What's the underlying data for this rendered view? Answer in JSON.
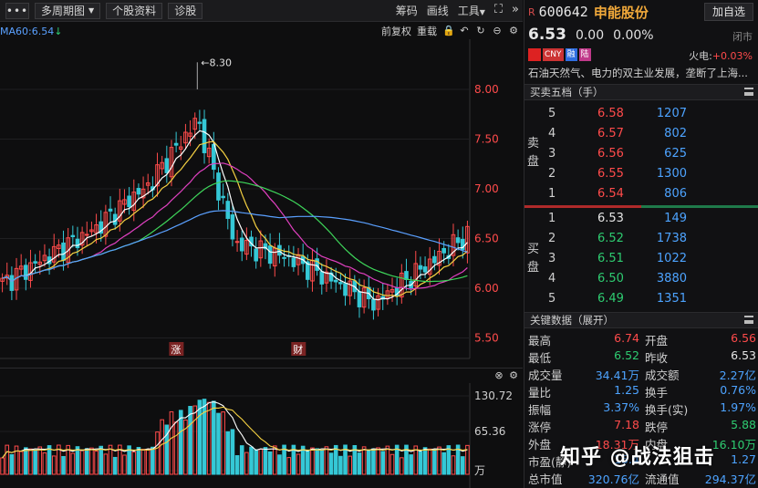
{
  "toolbar": {
    "dots_label": "•••",
    "period_label": "多周期图",
    "profile_label": "个股资料",
    "diagnose_label": "诊股",
    "right_items": [
      "筹码",
      "画线",
      "工具"
    ]
  },
  "chart_header": {
    "ma60_label": "MA60:6.54",
    "ma60_arrow": "↓",
    "fq_label": "前复权",
    "overlay_label": "重载"
  },
  "price_axis": [
    "8.00",
    "7.50",
    "7.00",
    "6.50",
    "6.00",
    "5.50"
  ],
  "high_marker": "8.30",
  "event_marks": [
    "涨",
    "财"
  ],
  "volume_axis": [
    "130.72",
    "65.36",
    "万"
  ],
  "quote": {
    "market_tag": "R",
    "code": "600642",
    "name": "申能股份",
    "add_button": "加自选",
    "price": "6.53",
    "change": "0.00",
    "change_pct": "0.00%",
    "status": "闭市",
    "tags": [
      "CNY",
      "融",
      "陆"
    ],
    "concept_label": "火电:",
    "concept_value": "+0.03%",
    "description": "石油天然气、电力的双主业发展，垄断了上海..."
  },
  "orderbook": {
    "title": "买卖五档（手）",
    "sell_label": [
      "卖",
      "盘"
    ],
    "buy_label": [
      "买",
      "盘"
    ],
    "asks": [
      {
        "level": "5",
        "price": "6.58",
        "vol": "1207",
        "color": "red"
      },
      {
        "level": "4",
        "price": "6.57",
        "vol": "802",
        "color": "red"
      },
      {
        "level": "3",
        "price": "6.56",
        "vol": "625",
        "color": "red"
      },
      {
        "level": "2",
        "price": "6.55",
        "vol": "1300",
        "color": "red"
      },
      {
        "level": "1",
        "price": "6.54",
        "vol": "806",
        "color": "red"
      }
    ],
    "bids": [
      {
        "level": "1",
        "price": "6.53",
        "vol": "149",
        "color": "white"
      },
      {
        "level": "2",
        "price": "6.52",
        "vol": "1738",
        "color": "green"
      },
      {
        "level": "3",
        "price": "6.51",
        "vol": "1022",
        "color": "green"
      },
      {
        "level": "4",
        "price": "6.50",
        "vol": "3880",
        "color": "green"
      },
      {
        "level": "5",
        "price": "6.49",
        "vol": "1351",
        "color": "green"
      }
    ]
  },
  "key_data": {
    "title": "关键数据（展开）",
    "rows": [
      {
        "l1": "最高",
        "v1": "6.74",
        "c1": "red",
        "l2": "开盘",
        "v2": "6.56",
        "c2": "red"
      },
      {
        "l1": "最低",
        "v1": "6.52",
        "c1": "green",
        "l2": "昨收",
        "v2": "6.53",
        "c2": "white"
      },
      {
        "l1": "成交量",
        "v1": "34.41万",
        "c1": "blue",
        "l2": "成交额",
        "v2": "2.27亿",
        "c2": "blue"
      },
      {
        "l1": "量比",
        "v1": "1.25",
        "c1": "blue",
        "l2": "换手",
        "v2": "0.76%",
        "c2": "blue"
      },
      {
        "l1": "振幅",
        "v1": "3.37%",
        "c1": "blue",
        "l2": "换手(实)",
        "v2": "1.97%",
        "c2": "blue"
      },
      {
        "l1": "涨停",
        "v1": "7.18",
        "c1": "red",
        "l2": "跌停",
        "v2": "5.88",
        "c2": "green"
      },
      {
        "l1": "外盘",
        "v1": "18.31万",
        "c1": "red",
        "l2": "内盘",
        "v2": "16.10万",
        "c2": "green"
      },
      {
        "l1": "市盈(静)",
        "v1": "15.4",
        "c1": "blue",
        "l2": "",
        "v2": "1.27",
        "c2": "blue"
      },
      {
        "l1": "总市值",
        "v1": "320.76亿",
        "c1": "blue",
        "l2": "流通值",
        "v2": "294.37亿",
        "c2": "blue"
      }
    ]
  },
  "watermark": "知乎 @战法狙击",
  "colors": {
    "up": "#ff4b4b",
    "down": "#2ecc71",
    "blue": "#4da3ff",
    "ma5": "#ffffff",
    "ma10": "#f5d142",
    "ma20": "#e040c0",
    "ma30": "#3ed65a",
    "ma60": "#5aa0ff"
  }
}
